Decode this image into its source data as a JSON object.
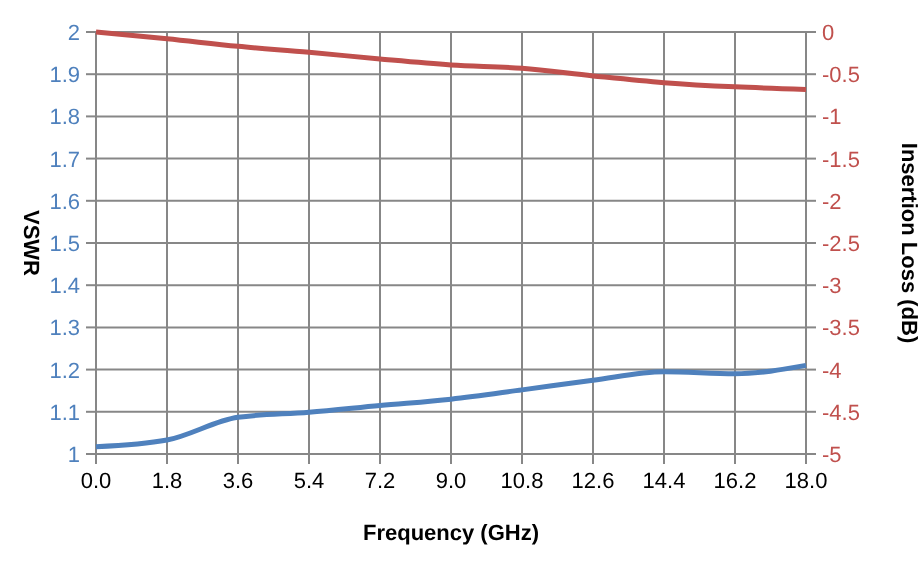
{
  "chart_data": {
    "type": "line",
    "xlabel": "Frequency (GHz)",
    "ylabel": "VSWR",
    "y2label": "Insertion Loss (dB)",
    "x": [
      0,
      1.8,
      3.6,
      5.4,
      7.2,
      9,
      10.8,
      12.6,
      14.4,
      16.2,
      18
    ],
    "xlim": [
      0,
      18
    ],
    "xticks": [
      {
        "value": 0,
        "label": "0.0"
      },
      1.8,
      3.6,
      5.4,
      7.2,
      {
        "value": 9,
        "label": "9.0"
      },
      10.8,
      12.6,
      14.4,
      16.2,
      {
        "value": 18,
        "label": "18.0"
      }
    ],
    "ylim": [
      1,
      2
    ],
    "yticks": [
      1,
      1.1,
      1.2,
      1.3,
      1.4,
      1.5,
      1.6,
      1.7,
      1.8,
      1.9,
      2
    ],
    "y2lim": [
      -5,
      0
    ],
    "y2ticks": [
      -5,
      -4.5,
      -4,
      -3.5,
      -3,
      -2.5,
      -2,
      -1.5,
      -1,
      -0.5,
      0
    ],
    "grid": true,
    "marker": "none",
    "line_style": "solid",
    "series": [
      {
        "color": "#4f81bd",
        "values": [
          1.017,
          1.033,
          1.087,
          1.099,
          1.115,
          1.13,
          1.152,
          1.175,
          1.195,
          1.19,
          1.21
        ]
      },
      {
        "color": "#c0504d",
        "axis": "y2",
        "values": [
          0,
          -0.08,
          -0.17,
          -0.24,
          -0.32,
          -0.39,
          -0.43,
          -0.52,
          -0.6,
          -0.65,
          -0.68
        ]
      }
    ]
  }
}
